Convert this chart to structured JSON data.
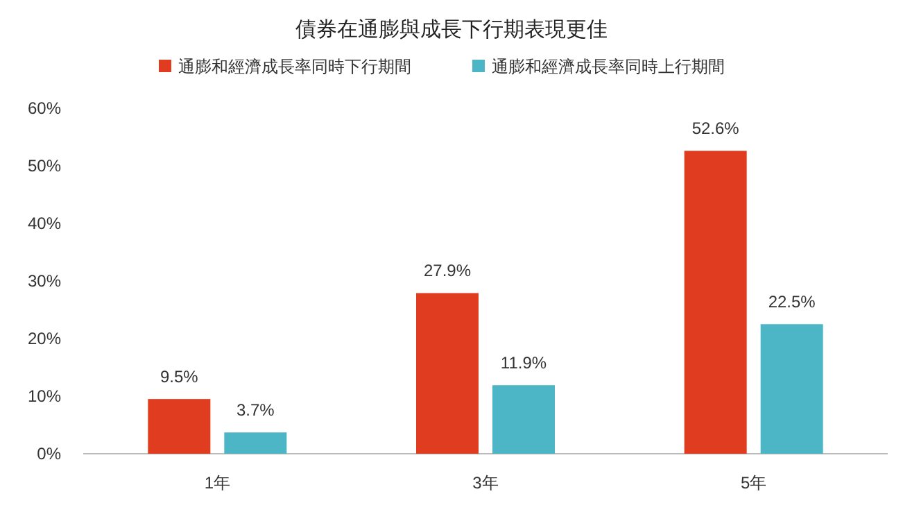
{
  "chart_data": {
    "type": "bar",
    "title": "債券在通膨與成長下行期表現更佳",
    "categories": [
      "1年",
      "3年",
      "5年"
    ],
    "series": [
      {
        "name": "通膨和經濟成長率同時下行期間",
        "color": "#e03c1f",
        "values": [
          9.5,
          27.9,
          52.6
        ],
        "value_labels": [
          "9.5%",
          "27.9%",
          "52.6%"
        ]
      },
      {
        "name": "通膨和經濟成長率同時上行期間",
        "color": "#4db6c6",
        "values": [
          3.7,
          11.9,
          22.5
        ],
        "value_labels": [
          "3.7%",
          "11.9%",
          "22.5%"
        ]
      }
    ],
    "ylim": [
      0,
      60
    ],
    "yticks": [
      {
        "value": 0,
        "label": "0%"
      },
      {
        "value": 10,
        "label": "10%"
      },
      {
        "value": 20,
        "label": "20%"
      },
      {
        "value": 30,
        "label": "30%"
      },
      {
        "value": 40,
        "label": "40%"
      },
      {
        "value": 50,
        "label": "50%"
      },
      {
        "value": 60,
        "label": "60%"
      }
    ],
    "grid": false,
    "legend": "top"
  }
}
